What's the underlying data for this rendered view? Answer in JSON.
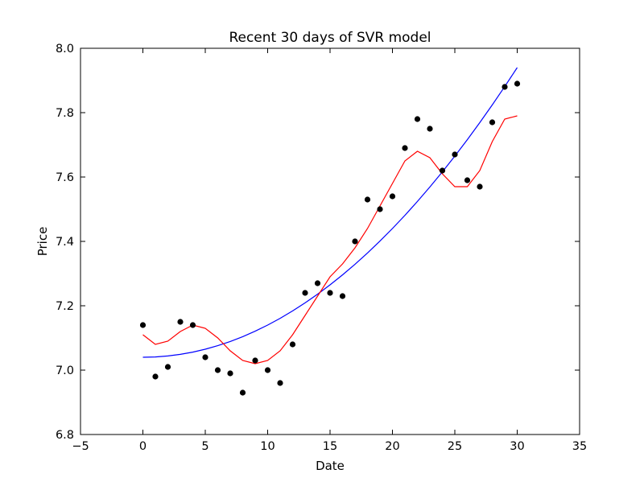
{
  "chart_data": {
    "type": "scatter",
    "title": "Recent 30 days of SVR model",
    "xlabel": "Date",
    "ylabel": "Price",
    "xlim": [
      -5,
      35
    ],
    "ylim": [
      6.8,
      8.0
    ],
    "xticks": [
      "−5",
      "0",
      "5",
      "10",
      "15",
      "20",
      "25",
      "30",
      "35"
    ],
    "yticks": [
      "6.8",
      "7.0",
      "7.2",
      "7.4",
      "7.6",
      "7.8",
      "8.0"
    ],
    "grid": false,
    "colors": {
      "points": "#000000",
      "poly_fit": "#0000ff",
      "rbf_fit": "#ff0000"
    },
    "series": [
      {
        "kind": "scatter",
        "x": [
          0,
          1,
          2,
          3,
          4,
          5,
          6,
          7,
          8,
          9,
          10,
          11,
          12,
          13,
          14,
          15,
          16,
          17,
          18,
          19,
          20,
          21,
          22,
          23,
          24,
          25,
          26,
          27,
          28,
          29,
          30
        ],
        "y": [
          7.14,
          6.98,
          7.01,
          7.15,
          7.14,
          7.04,
          7.0,
          6.99,
          6.93,
          7.03,
          7.0,
          6.96,
          7.08,
          7.24,
          7.27,
          7.24,
          7.23,
          7.4,
          7.53,
          7.5,
          7.54,
          7.69,
          7.78,
          7.75,
          7.62,
          7.67,
          7.59,
          7.57,
          7.77,
          7.88,
          7.89
        ]
      },
      {
        "kind": "line",
        "color": "#0000ff",
        "x": [
          0,
          1,
          2,
          3,
          4,
          5,
          6,
          7,
          8,
          9,
          10,
          11,
          12,
          13,
          14,
          15,
          16,
          17,
          18,
          19,
          20,
          21,
          22,
          23,
          24,
          25,
          26,
          27,
          28,
          29,
          30
        ],
        "y": [
          7.04,
          7.041,
          7.044,
          7.049,
          7.056,
          7.065,
          7.076,
          7.089,
          7.104,
          7.121,
          7.14,
          7.161,
          7.184,
          7.209,
          7.236,
          7.265,
          7.296,
          7.329,
          7.364,
          7.401,
          7.44,
          7.481,
          7.524,
          7.569,
          7.616,
          7.665,
          7.716,
          7.769,
          7.824,
          7.881,
          7.94
        ]
      },
      {
        "kind": "line",
        "color": "#ff0000",
        "x": [
          0,
          1,
          2,
          3,
          4,
          5,
          6,
          7,
          8,
          9,
          10,
          11,
          12,
          13,
          14,
          15,
          16,
          17,
          18,
          19,
          20,
          21,
          22,
          23,
          24,
          25,
          26,
          27,
          28,
          29,
          30
        ],
        "y": [
          7.11,
          7.08,
          7.09,
          7.12,
          7.14,
          7.13,
          7.1,
          7.06,
          7.03,
          7.02,
          7.03,
          7.06,
          7.11,
          7.17,
          7.23,
          7.29,
          7.33,
          7.38,
          7.44,
          7.51,
          7.58,
          7.65,
          7.68,
          7.66,
          7.61,
          7.57,
          7.57,
          7.62,
          7.71,
          7.78,
          7.79
        ]
      }
    ]
  }
}
